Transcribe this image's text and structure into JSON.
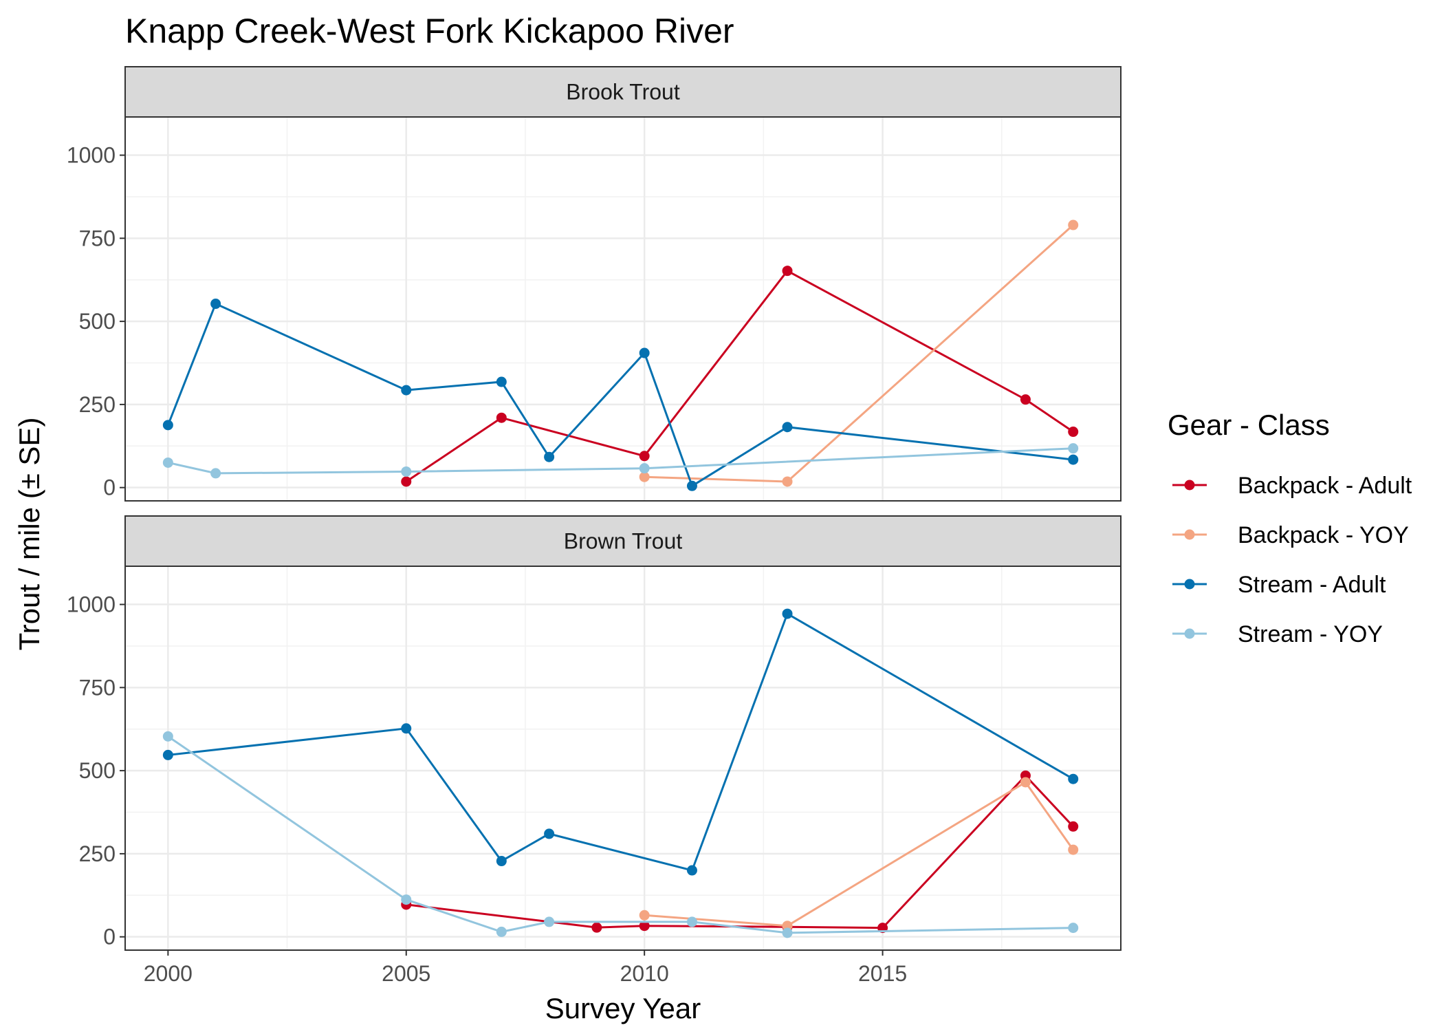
{
  "chart_data": {
    "type": "line",
    "title": "Knapp Creek-West Fork Kickapoo River",
    "xlabel": "Survey Year",
    "ylabel": "Trout / mile (± SE)",
    "xlim": [
      1999.1,
      2020.0
    ],
    "ylim": [
      -40,
      1115
    ],
    "x_ticks": [
      2000,
      2005,
      2010,
      2015
    ],
    "y_ticks": [
      0,
      250,
      500,
      750,
      1000
    ],
    "grid": true,
    "legend": {
      "title": "Gear - Class",
      "placement": "right",
      "entries": [
        "Backpack - Adult",
        "Backpack - YOY",
        "Stream - Adult",
        "Stream - YOY"
      ]
    },
    "colors": {
      "Backpack - Adult": "#ca0020",
      "Backpack - YOY": "#f4a582",
      "Stream - Adult": "#0571b0",
      "Stream - YOY": "#92c5de"
    },
    "panels": [
      {
        "strip": "Brook Trout",
        "series": [
          {
            "name": "Backpack - Adult",
            "x": [
              2005,
              2007,
              2010,
              2013,
              2018,
              2019
            ],
            "y": [
              18,
              210,
              95,
              652,
              265,
              168
            ]
          },
          {
            "name": "Backpack - YOY",
            "x": [
              2010,
              2013,
              2019
            ],
            "y": [
              32,
              18,
              790
            ]
          },
          {
            "name": "Stream - Adult",
            "x": [
              2000,
              2001,
              2005,
              2007,
              2008,
              2010,
              2011,
              2013,
              2019
            ],
            "y": [
              188,
              553,
              293,
              318,
              92,
              405,
              5,
              182,
              84
            ]
          },
          {
            "name": "Stream - YOY",
            "x": [
              2000,
              2001,
              2005,
              2010,
              2019
            ],
            "y": [
              75,
              43,
              48,
              58,
              118
            ]
          }
        ]
      },
      {
        "strip": "Brown Trout",
        "series": [
          {
            "name": "Backpack - Adult",
            "x": [
              2005,
              2009,
              2010,
              2013,
              2015,
              2018,
              2019
            ],
            "y": [
              97,
              28,
              33,
              30,
              27,
              485,
              332
            ]
          },
          {
            "name": "Backpack - YOY",
            "x": [
              2010,
              2013,
              2018,
              2019
            ],
            "y": [
              65,
              33,
              465,
              262
            ]
          },
          {
            "name": "Stream - Adult",
            "x": [
              2000,
              2005,
              2007,
              2008,
              2011,
              2013,
              2019
            ],
            "y": [
              547,
              627,
              228,
              310,
              200,
              972,
              475
            ]
          },
          {
            "name": "Stream - YOY",
            "x": [
              2000,
              2005,
              2007,
              2008,
              2011,
              2013,
              2019
            ],
            "y": [
              603,
              112,
              15,
              45,
              45,
              12,
              27
            ]
          }
        ]
      }
    ]
  }
}
